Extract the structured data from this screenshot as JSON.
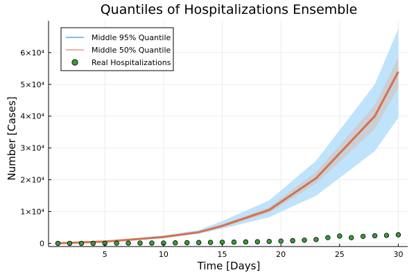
{
  "chart_data": {
    "type": "line",
    "title": "Quantiles of Hospitalizations Ensemble",
    "xlabel": "Time [Days]",
    "ylabel": "Number [Cases]",
    "xlim": [
      0.2,
      30.8
    ],
    "ylim": [
      -1000,
      70000
    ],
    "xticks": [
      5,
      10,
      15,
      20,
      25,
      30
    ],
    "yticks": [
      {
        "value": 0,
        "label": "0"
      },
      {
        "value": 10000,
        "label": "1×10⁴"
      },
      {
        "value": 20000,
        "label": "2×10⁴"
      },
      {
        "value": 30000,
        "label": "3×10⁴"
      },
      {
        "value": 40000,
        "label": "4×10⁴"
      },
      {
        "value": 50000,
        "label": "5×10⁴"
      },
      {
        "value": 60000,
        "label": "6×10⁴"
      }
    ],
    "grid": true,
    "legend_position": "top-left",
    "colors": {
      "band95": "#bfe3fb",
      "band95_line": "#5aa9e6",
      "band50": "#cfc7c7",
      "band50_line": "#e8948a",
      "median": "#d4714e",
      "points_fill": "#3a9a3a",
      "points_stroke": "#000000"
    },
    "series": [
      {
        "name": "Middle 95% Quantile",
        "x": [
          1,
          3,
          5,
          7,
          10,
          13,
          15,
          19,
          23,
          28,
          30
        ],
        "lower": [
          0,
          200,
          400,
          800,
          1600,
          3000,
          4600,
          8200,
          15000,
          29000,
          39500
        ],
        "upper": [
          100,
          400,
          800,
          1500,
          2500,
          4200,
          7000,
          13500,
          26000,
          50000,
          67500
        ]
      },
      {
        "name": "Middle 50% Quantile",
        "x": [
          1,
          3,
          5,
          7,
          10,
          13,
          15,
          19,
          23,
          28,
          30
        ],
        "lower": [
          0,
          260,
          520,
          1000,
          1850,
          3300,
          5000,
          9600,
          18800,
          36000,
          49000
        ],
        "upper": [
          80,
          340,
          700,
          1300,
          2250,
          3800,
          6000,
          11400,
          22500,
          43500,
          58500
        ]
      },
      {
        "name": "Median",
        "x": [
          1,
          3,
          5,
          7,
          10,
          13,
          15,
          19,
          23,
          28,
          30
        ],
        "values": [
          0,
          300,
          600,
          1100,
          2000,
          3500,
          5500,
          10500,
          20500,
          40000,
          54000
        ]
      },
      {
        "name": "Real Hospitalizations",
        "x": [
          1,
          2,
          3,
          4,
          5,
          6,
          7,
          8,
          9,
          10,
          11,
          12,
          13,
          14,
          15,
          16,
          17,
          18,
          19,
          20,
          21,
          22,
          23,
          24,
          25,
          26,
          27,
          28,
          29,
          30
        ],
        "values": [
          0,
          0,
          0,
          0,
          0,
          50,
          50,
          80,
          100,
          100,
          150,
          200,
          250,
          300,
          350,
          400,
          450,
          500,
          600,
          700,
          850,
          1000,
          1200,
          1800,
          2300,
          1800,
          2200,
          2400,
          2500,
          2700
        ]
      }
    ],
    "legend": [
      {
        "label": "Middle 95% Quantile",
        "kind": "line",
        "color": "#5aa9e6"
      },
      {
        "label": "Middle 50% Quantile",
        "kind": "line",
        "color": "#e8948a"
      },
      {
        "label": "Real Hospitalizations",
        "kind": "marker",
        "color": "#3a9a3a"
      }
    ]
  }
}
